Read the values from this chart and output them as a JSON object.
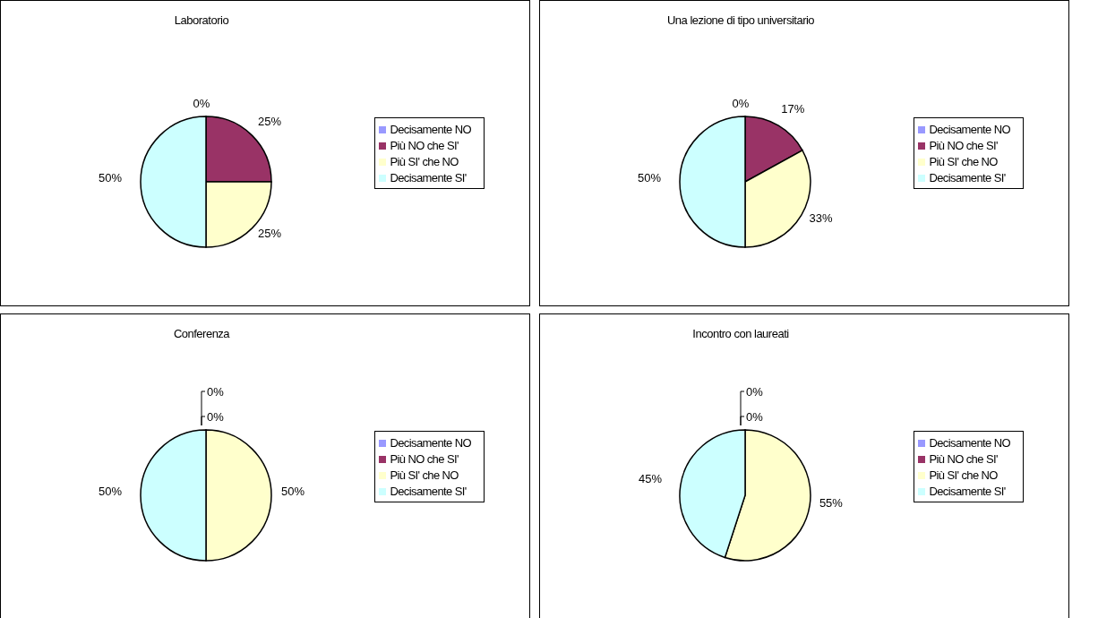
{
  "chart_data": [
    {
      "type": "pie",
      "title": "Laboratorio",
      "categories": [
        "Decisamente NO",
        "Più NO che SI'",
        "Più SI' che NO",
        "Decisamente SI'"
      ],
      "values": [
        0,
        25,
        25,
        50
      ],
      "value_labels": [
        "0%",
        "25%",
        "25%",
        "50%"
      ],
      "colors": [
        "#9999ff",
        "#993366",
        "#ffffcc",
        "#ccffff"
      ],
      "legend": "right"
    },
    {
      "type": "pie",
      "title": "Una lezione di tipo universitario",
      "categories": [
        "Decisamente NO",
        "Più NO che SI'",
        "Più SI' che NO",
        "Decisamente SI'"
      ],
      "values": [
        0,
        17,
        33,
        50
      ],
      "value_labels": [
        "0%",
        "17%",
        "33%",
        "50%"
      ],
      "colors": [
        "#9999ff",
        "#993366",
        "#ffffcc",
        "#ccffff"
      ],
      "legend": "right"
    },
    {
      "type": "pie",
      "title": "Conferenza",
      "categories": [
        "Decisamente NO",
        "Più NO che SI'",
        "Più SI' che NO",
        "Decisamente SI'"
      ],
      "values": [
        0,
        0,
        50,
        50
      ],
      "value_labels": [
        "0%",
        "0%",
        "50%",
        "50%"
      ],
      "colors": [
        "#9999ff",
        "#993366",
        "#ffffcc",
        "#ccffff"
      ],
      "legend": "right"
    },
    {
      "type": "pie",
      "title": "Incontro con laureati",
      "categories": [
        "Decisamente NO",
        "Più NO che SI'",
        "Più SI' che NO",
        "Decisamente SI'"
      ],
      "values": [
        0,
        0,
        55,
        45
      ],
      "value_labels": [
        "0%",
        "0%",
        "55%",
        "45%"
      ],
      "colors": [
        "#9999ff",
        "#993366",
        "#ffffcc",
        "#ccffff"
      ],
      "legend": "right"
    }
  ]
}
